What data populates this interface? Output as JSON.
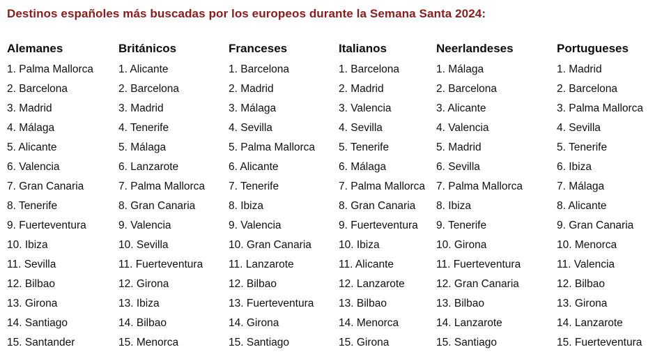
{
  "title": "Destinos españoles más buscadas por los europeos durante la Semana Santa 2024:",
  "colors": {
    "title_text": "#8e1b1b",
    "body_text": "#101010",
    "background": "#ffffff"
  },
  "columns": [
    {
      "label": "Alemanes",
      "items": [
        "1. Palma Mallorca",
        "2. Barcelona",
        "3. Madrid",
        "4. Málaga",
        "5. Alicante",
        "6. Valencia",
        "7. Gran Canaria",
        "8. Tenerife",
        "9. Fuerteventura",
        "10. Ibiza",
        "11. Sevilla",
        "12. Bilbao",
        "13. Girona",
        "14. Santiago",
        "15. Santander"
      ]
    },
    {
      "label": "Británicos",
      "items": [
        "1. Alicante",
        "2. Barcelona",
        "3. Madrid",
        "4. Tenerife",
        "5. Málaga",
        "6. Lanzarote",
        "7. Palma Mallorca",
        "8. Gran Canaria",
        "9. Valencia",
        "10. Sevilla",
        "11. Fuerteventura",
        "12. Girona",
        "13. Ibiza",
        "14. Bilbao",
        "15. Menorca"
      ]
    },
    {
      "label": "Franceses",
      "items": [
        "1. Barcelona",
        "2. Madrid",
        "3. Málaga",
        "4. Sevilla",
        "5. Palma Mallorca",
        "6. Alicante",
        "7. Tenerife",
        "8. Ibiza",
        "9. Valencia",
        "10. Gran Canaria",
        "11. Lanzarote",
        "12. Bilbao",
        "13. Fuerteventura",
        "14. Girona",
        "15. Santiago"
      ]
    },
    {
      "label": "Italianos",
      "items": [
        "1. Barcelona",
        "2. Madrid",
        "3. Valencia",
        "4. Sevilla",
        "5. Tenerife",
        "6. Málaga",
        "7. Palma Mallorca",
        "8. Gran Canaria",
        "9. Fuerteventura",
        "10. Ibiza",
        "11. Alicante",
        "12. Lanzarote",
        "13. Bilbao",
        "14. Menorca",
        "15. Girona"
      ]
    },
    {
      "label": "Neerlandeses",
      "items": [
        "1. Málaga",
        "2. Barcelona",
        "3. Alicante",
        "4. Valencia",
        "5. Madrid",
        "6. Sevilla",
        "7. Palma Mallorca",
        "8. Ibiza",
        "9. Tenerife",
        "10. Girona",
        "11. Fuerteventura",
        "12. Gran Canaria",
        "13. Bilbao",
        "14. Lanzarote",
        "15. Santiago"
      ]
    },
    {
      "label": "Portugueses",
      "items": [
        "1. Madrid",
        "2. Barcelona",
        "3. Palma Mallorca",
        "4. Sevilla",
        "5. Tenerife",
        "6. Ibiza",
        "7. Málaga",
        "8. Alicante",
        "9. Gran Canaria",
        "10. Menorca",
        "11. Valencia",
        "12. Bilbao",
        "13. Girona",
        "14. Lanzarote",
        "15. Fuerteventura"
      ]
    }
  ]
}
